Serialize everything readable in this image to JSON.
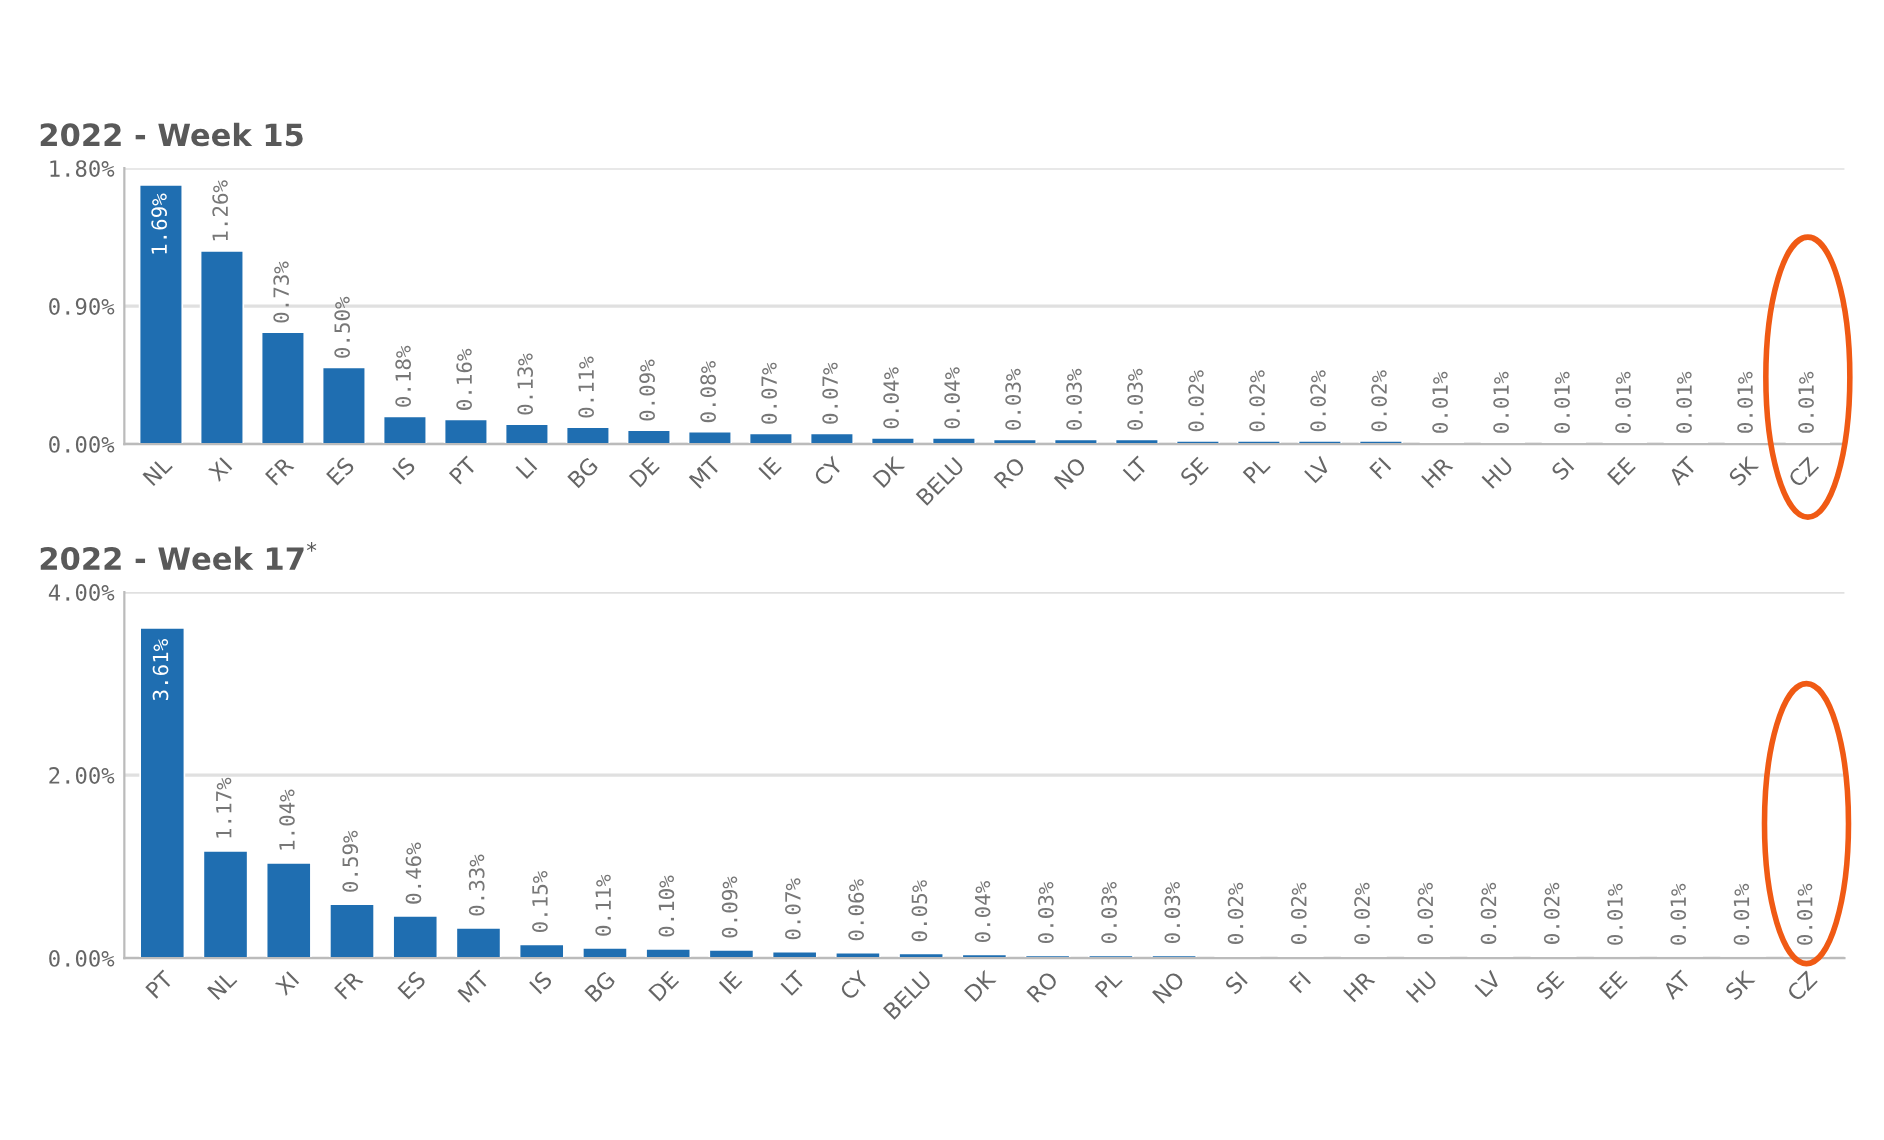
{
  "chart_data": [
    {
      "type": "bar",
      "title": "2022 - Week 15",
      "categories": [
        "NL",
        "XI",
        "FR",
        "ES",
        "IS",
        "PT",
        "LI",
        "BG",
        "DE",
        "MT",
        "IE",
        "CY",
        "DK",
        "BELU",
        "RO",
        "NO",
        "LT",
        "SE",
        "PL",
        "LV",
        "FI",
        "HR",
        "HU",
        "SI",
        "EE",
        "AT",
        "SK",
        "CZ"
      ],
      "values": [
        1.69,
        1.26,
        0.73,
        0.5,
        0.18,
        0.16,
        0.13,
        0.11,
        0.09,
        0.08,
        0.07,
        0.07,
        0.04,
        0.04,
        0.03,
        0.03,
        0.03,
        0.02,
        0.02,
        0.02,
        0.02,
        0.01,
        0.01,
        0.01,
        0.01,
        0.01,
        0.01,
        0.01
      ],
      "value_labels": [
        "1.69%",
        "1.26%",
        "0.73%",
        "0.50%",
        "0.18%",
        "0.16%",
        "0.13%",
        "0.11%",
        "0.09%",
        "0.08%",
        "0.07%",
        "0.07%",
        "0.04%",
        "0.04%",
        "0.03%",
        "0.03%",
        "0.03%",
        "0.02%",
        "0.02%",
        "0.02%",
        "0.02%",
        "0.01%",
        "0.01%",
        "0.01%",
        "0.01%",
        "0.01%",
        "0.01%",
        "0.01%"
      ],
      "color": "#1f6eb1",
      "ylim": [
        0,
        1.8
      ],
      "yticks": [
        {
          "value": 0,
          "label": "0.00%"
        },
        {
          "value": 0.9,
          "label": "0.90%"
        },
        {
          "value": 1.8,
          "label": "1.80%"
        }
      ],
      "grid": "y"
    },
    {
      "type": "bar",
      "title": "2022 - Week 17$^{*}$",
      "categories": [
        "PT",
        "NL",
        "XI",
        "FR",
        "ES",
        "MT",
        "IS",
        "BG",
        "DE",
        "IE",
        "LT",
        "CY",
        "BELU",
        "DK",
        "RO",
        "PL",
        "NO",
        "SI",
        "FI",
        "HR",
        "HU",
        "LV",
        "SE",
        "EE",
        "AT",
        "SK",
        "CZ"
      ],
      "values": [
        3.61,
        1.17,
        1.04,
        0.59,
        0.46,
        0.33,
        0.15,
        0.11,
        0.1,
        0.09,
        0.07,
        0.06,
        0.05,
        0.04,
        0.03,
        0.03,
        0.03,
        0.02,
        0.02,
        0.02,
        0.02,
        0.02,
        0.02,
        0.01,
        0.01,
        0.01,
        0.01
      ],
      "value_labels": [
        "3.61%",
        "1.17%",
        "1.04%",
        "0.59%",
        "0.46%",
        "0.33%",
        "0.15%",
        "0.11%",
        "0.10%",
        "0.09%",
        "0.07%",
        "0.06%",
        "0.05%",
        "0.04%",
        "0.03%",
        "0.03%",
        "0.03%",
        "0.02%",
        "0.02%",
        "0.02%",
        "0.02%",
        "0.02%",
        "0.02%",
        "0.01%",
        "0.01%",
        "0.01%",
        "0.01%"
      ],
      "color": "#1f6eb1",
      "ylim": [
        0,
        4.0
      ],
      "yticks": [
        {
          "value": 0,
          "label": "0.00%"
        },
        {
          "value": 2.0,
          "label": "2.00%"
        },
        {
          "value": 4.0,
          "label": "4.00%"
        }
      ],
      "grid": "y"
    }
  ]
}
